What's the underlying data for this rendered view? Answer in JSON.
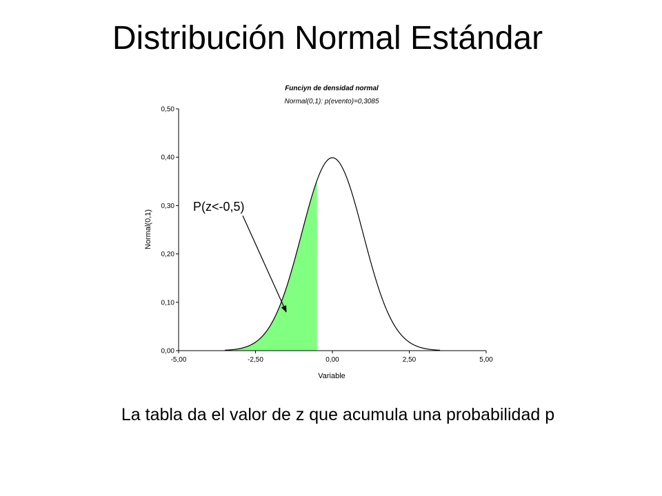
{
  "slide": {
    "title": "Distribución Normal Estándar",
    "caption": "La tabla da el valor de z que acumula una probabilidad p"
  },
  "chart_data": {
    "type": "area",
    "title": "Funciyn de densidad normal",
    "subtitle": "Normal(0,1): p(evento)=0,3085",
    "xlabel": "Variable",
    "ylabel": "Normal(0,1)",
    "xlim": [
      -5,
      5
    ],
    "ylim": [
      0,
      0.5
    ],
    "x_ticks": [
      -5,
      -2.5,
      0,
      2.5,
      5
    ],
    "x_tick_labels": [
      "-5,00",
      "-2,50",
      "0,00",
      "2,50",
      "5,00"
    ],
    "y_ticks": [
      0,
      0.1,
      0.2,
      0.3,
      0.4,
      0.5
    ],
    "y_tick_labels": [
      "0,00",
      "0,10",
      "0,20",
      "0,30",
      "0,40",
      "0,50"
    ],
    "grid": false,
    "distribution": {
      "name": "normal",
      "mean": 0,
      "sd": 1
    },
    "shaded_region": {
      "from": -5,
      "to": -0.5,
      "probability": 0.3085,
      "color": "#80ff80"
    },
    "curve_color": "#000000",
    "annotation": {
      "text": "P(z<-0,5)",
      "points_to": {
        "x": -1.5,
        "y": 0.08
      }
    }
  }
}
